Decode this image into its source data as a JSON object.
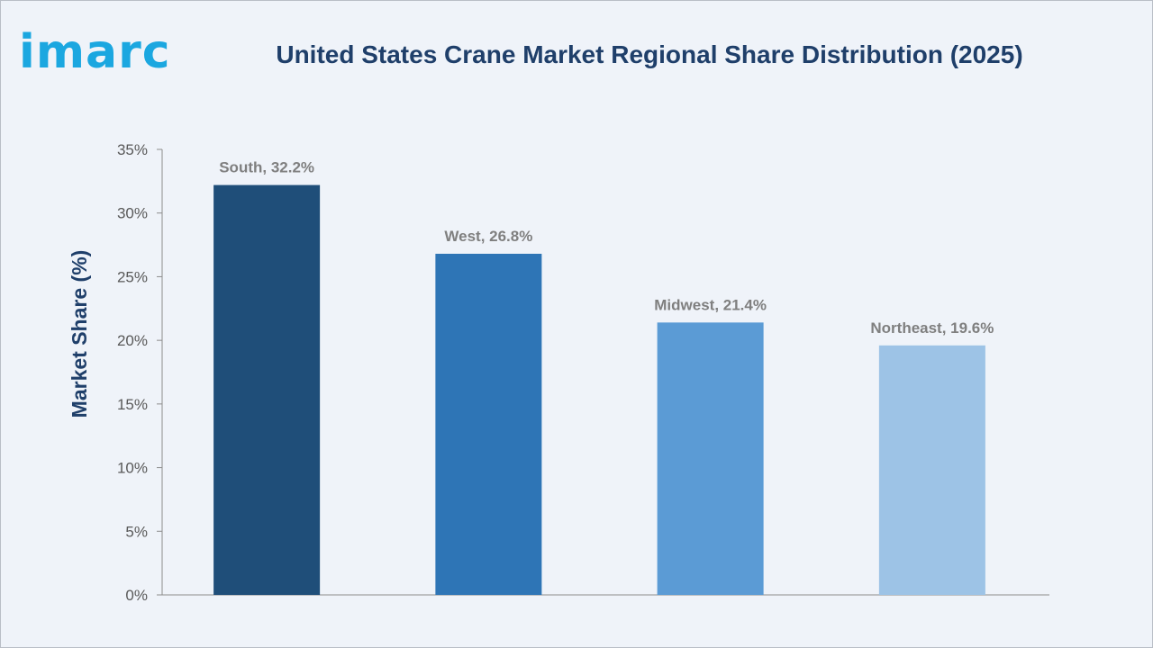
{
  "brand": {
    "logo_text": "imarc",
    "logo_color": "#1ba7e0"
  },
  "chart_data": {
    "type": "bar",
    "title": "United States Crane Market Regional Share Distribution (2025)",
    "xlabel": "",
    "ylabel": "Market Share (%)",
    "categories": [
      "South",
      "West",
      "Midwest",
      "Northeast"
    ],
    "values": [
      32.2,
      26.8,
      21.4,
      19.6
    ],
    "data_labels": [
      "South, 32.2%",
      "West, 26.8%",
      "Midwest, 21.4%",
      "Northeast, 19.6%"
    ],
    "ylim": [
      0,
      35
    ],
    "yticks": [
      0,
      5,
      10,
      15,
      20,
      25,
      30,
      35
    ],
    "ytick_labels": [
      "0%",
      "5%",
      "10%",
      "15%",
      "20%",
      "25%",
      "30%",
      "35%"
    ],
    "bar_colors": [
      "#1f4e79",
      "#2e75b6",
      "#5b9bd5",
      "#9dc3e6"
    ],
    "grid": false,
    "legend": "none"
  }
}
